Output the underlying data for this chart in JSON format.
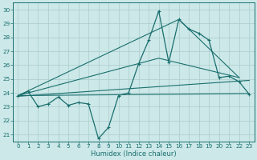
{
  "xlabel": "Humidex (Indice chaleur)",
  "xlim": [
    -0.5,
    23.5
  ],
  "ylim": [
    20.5,
    30.5
  ],
  "yticks": [
    21,
    22,
    23,
    24,
    25,
    26,
    27,
    28,
    29,
    30
  ],
  "xticks": [
    0,
    1,
    2,
    3,
    4,
    5,
    6,
    7,
    8,
    9,
    10,
    11,
    12,
    13,
    14,
    15,
    16,
    17,
    18,
    19,
    20,
    21,
    22,
    23
  ],
  "bg_color": "#cce8e8",
  "grid_color": "#aacccc",
  "line_color": "#1a6e6e",
  "main_line": [
    23.8,
    24.1,
    23.0,
    23.2,
    23.7,
    23.1,
    23.3,
    23.2,
    20.7,
    21.5,
    23.8,
    24.0,
    26.1,
    27.8,
    29.9,
    26.2,
    29.3,
    28.6,
    28.3,
    27.8,
    25.1,
    25.2,
    24.8,
    23.9
  ],
  "trend1_x": [
    0,
    23
  ],
  "trend1_y": [
    23.8,
    23.95
  ],
  "trend2_x": [
    0,
    23
  ],
  "trend2_y": [
    23.75,
    24.9
  ],
  "trend3_x": [
    0,
    14,
    22
  ],
  "trend3_y": [
    23.8,
    26.5,
    25.1
  ],
  "trend4_x": [
    0,
    16,
    22
  ],
  "trend4_y": [
    23.8,
    29.3,
    25.1
  ]
}
